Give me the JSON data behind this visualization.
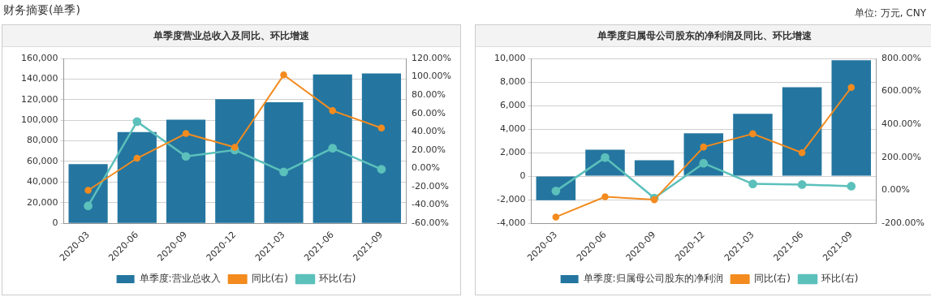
{
  "chart_data": [
    {
      "type": "bar",
      "title": "单季度营业总收入及同比、环比增速",
      "annotations": [
        "财务摘要(单季)"
      ],
      "categories": [
        "2020-03",
        "2020-06",
        "2020-09",
        "2020-12",
        "2021-03",
        "2021-06",
        "2021-09"
      ],
      "series": [
        {
          "name": "单季度:营业总收入",
          "color": "#2476a0",
          "values": [
            57500,
            88500,
            100500,
            120500,
            117500,
            144500,
            145500
          ]
        },
        {
          "name": "同比(右)",
          "type": "line",
          "axis": "y2",
          "color": "#f38b1f",
          "values": [
            -24,
            11,
            38,
            23,
            102,
            63,
            44
          ]
        },
        {
          "name": "环比(右)",
          "type": "line",
          "axis": "y2",
          "color": "#5cc0bb",
          "values": [
            -41,
            51,
            13,
            20,
            -4,
            22,
            -1
          ]
        }
      ],
      "ylim": [
        0,
        160000
      ],
      "yticks": [
        {
          "value": 0,
          "label": "0"
        },
        {
          "value": 20000,
          "label": "20,000"
        },
        {
          "value": 40000,
          "label": "40,000"
        },
        {
          "value": 60000,
          "label": "60,000"
        },
        {
          "value": 80000,
          "label": "80,000"
        },
        {
          "value": 100000,
          "label": "100,000"
        },
        {
          "value": 120000,
          "label": "120,000"
        },
        {
          "value": 140000,
          "label": "140,000"
        },
        {
          "value": 160000,
          "label": "160,000"
        }
      ],
      "y2lim": [
        -60,
        120
      ],
      "y2ticks": [
        {
          "value": -60,
          "label": "-60.00%"
        },
        {
          "value": -40,
          "label": "-40.00%"
        },
        {
          "value": -20,
          "label": "-20.00%"
        },
        {
          "value": 0,
          "label": "0.00%"
        },
        {
          "value": 20,
          "label": "20.00%"
        },
        {
          "value": 40,
          "label": "40.00%"
        },
        {
          "value": 60,
          "label": "60.00%"
        },
        {
          "value": 80,
          "label": "80.00%"
        },
        {
          "value": 100,
          "label": "100.00%"
        },
        {
          "value": 120,
          "label": "120.00%"
        }
      ],
      "grid": "y",
      "legend": "bottom",
      "marker": "circle"
    },
    {
      "type": "bar",
      "title": "单季度归属母公司股东的净利润及同比、环比增速",
      "annotations": [
        "单位: 万元, CNY"
      ],
      "categories": [
        "2020-03",
        "2020-06",
        "2020-09",
        "2020-12",
        "2021-03",
        "2021-06",
        "2021-09"
      ],
      "series": [
        {
          "name": "单季度:归属母公司股东的净利润",
          "color": "#2476a0",
          "values": [
            -2050,
            2250,
            1350,
            3650,
            5300,
            7550,
            9850
          ]
        },
        {
          "name": "同比(右)",
          "type": "line",
          "axis": "y2",
          "color": "#f38b1f",
          "values": [
            -162,
            -39,
            -57,
            263,
            343,
            228,
            624
          ]
        },
        {
          "name": "环比(右)",
          "type": "line",
          "axis": "y2",
          "color": "#5cc0bb",
          "values": [
            -4,
            199,
            -47,
            164,
            39,
            35,
            25
          ]
        }
      ],
      "ylim": [
        -4000,
        10000
      ],
      "yticks": [
        {
          "value": -4000,
          "label": "-4,000"
        },
        {
          "value": -2000,
          "label": "-2,000"
        },
        {
          "value": 0,
          "label": "0"
        },
        {
          "value": 2000,
          "label": "2,000"
        },
        {
          "value": 4000,
          "label": "4,000"
        },
        {
          "value": 6000,
          "label": "6,000"
        },
        {
          "value": 8000,
          "label": "8,000"
        },
        {
          "value": 10000,
          "label": "10,000"
        }
      ],
      "y2lim": [
        -200,
        800
      ],
      "y2ticks": [
        {
          "value": -200,
          "label": "-200.00%"
        },
        {
          "value": 0,
          "label": "0.00%"
        },
        {
          "value": 200,
          "label": "200.00%"
        },
        {
          "value": 400,
          "label": "400.00%"
        },
        {
          "value": 600,
          "label": "600.00%"
        },
        {
          "value": 800,
          "label": "800.00%"
        }
      ],
      "grid": "y",
      "legend": "bottom",
      "marker": "circle"
    }
  ]
}
